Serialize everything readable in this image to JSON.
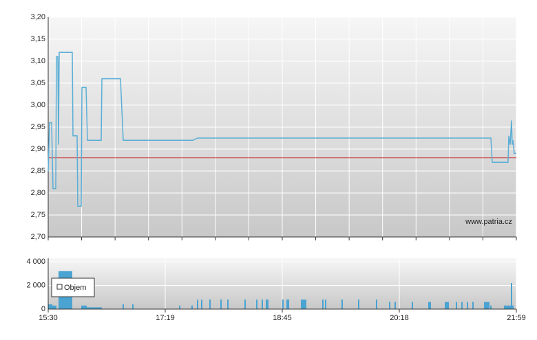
{
  "chart_data": [
    {
      "type": "line",
      "xlim": [
        0,
        680
      ],
      "ylim": [
        2.7,
        3.2
      ],
      "yticks": [
        {
          "value": 2.7,
          "label": "2,70"
        },
        {
          "value": 2.75,
          "label": "2,75"
        },
        {
          "value": 2.8,
          "label": "2,80"
        },
        {
          "value": 2.85,
          "label": "2,85"
        },
        {
          "value": 2.9,
          "label": "2,90"
        },
        {
          "value": 2.95,
          "label": "2,95"
        },
        {
          "value": 3.0,
          "label": "3,00"
        },
        {
          "value": 3.05,
          "label": "3,05"
        },
        {
          "value": 3.1,
          "label": "3,10"
        },
        {
          "value": 3.15,
          "label": "3,15"
        },
        {
          "value": 3.2,
          "label": "3,20"
        }
      ],
      "grid": true,
      "x": [
        0,
        2,
        5,
        7,
        11,
        12,
        14,
        15,
        16,
        35,
        36,
        42,
        43,
        48,
        49,
        55,
        57,
        77,
        78,
        105,
        109,
        210,
        217,
        487,
        643,
        645,
        668,
        669,
        671,
        673,
        674,
        675,
        677,
        680
      ],
      "series": [
        {
          "color": "#5aaed6",
          "values": [
            2.85,
            2.96,
            2.96,
            2.81,
            2.81,
            3.11,
            3.11,
            2.91,
            3.12,
            3.12,
            2.93,
            2.93,
            2.77,
            2.77,
            3.04,
            3.04,
            2.92,
            2.92,
            3.06,
            3.06,
            2.92,
            2.92,
            2.925,
            2.925,
            2.925,
            2.87,
            2.87,
            2.93,
            2.91,
            2.965,
            2.91,
            2.92,
            2.89,
            2.89
          ]
        }
      ],
      "reference_line": {
        "value": 2.88,
        "color": "#cc3333"
      },
      "watermark": "www.patria.cz"
    },
    {
      "type": "bar",
      "xlim": [
        0,
        680
      ],
      "xticks": [
        {
          "value": 0,
          "label": "15:30"
        },
        {
          "value": 170,
          "label": "17:19"
        },
        {
          "value": 340,
          "label": "18:45"
        },
        {
          "value": 510,
          "label": "20:18"
        },
        {
          "value": 680,
          "label": "21:59"
        }
      ],
      "ylim": [
        0,
        4000
      ],
      "yticks": [
        0,
        {
          "value": 2000,
          "label": "2 000"
        },
        {
          "value": 4000,
          "label": "4 000"
        }
      ],
      "grid": true,
      "legend": "top-left",
      "x": [
        0,
        6,
        15,
        48,
        56,
        108,
        122,
        190,
        208,
        216,
        222,
        234,
        250,
        260,
        285,
        302,
        310,
        316,
        340,
        346,
        367,
        398,
        402,
        426,
        450,
        476,
        495,
        503,
        528,
        552,
        576,
        592,
        600,
        608,
        616,
        633,
        642,
        662,
        672
      ],
      "x_end": [
        6,
        12,
        35,
        56,
        78,
        110,
        124,
        192,
        210,
        218,
        224,
        236,
        252,
        262,
        287,
        304,
        312,
        320,
        342,
        350,
        375,
        400,
        404,
        428,
        452,
        478,
        497,
        505,
        530,
        556,
        582,
        594,
        602,
        610,
        618,
        641,
        644,
        676,
        674
      ],
      "series": [
        {
          "name": "Objem",
          "color": "#4aa3d1",
          "values": [
            400,
            300,
            3200,
            300,
            150,
            400,
            400,
            300,
            300,
            800,
            800,
            800,
            800,
            800,
            800,
            800,
            800,
            800,
            800,
            800,
            800,
            800,
            800,
            800,
            800,
            800,
            600,
            600,
            600,
            600,
            600,
            600,
            600,
            600,
            600,
            600,
            300,
            300,
            2200
          ]
        }
      ]
    }
  ]
}
